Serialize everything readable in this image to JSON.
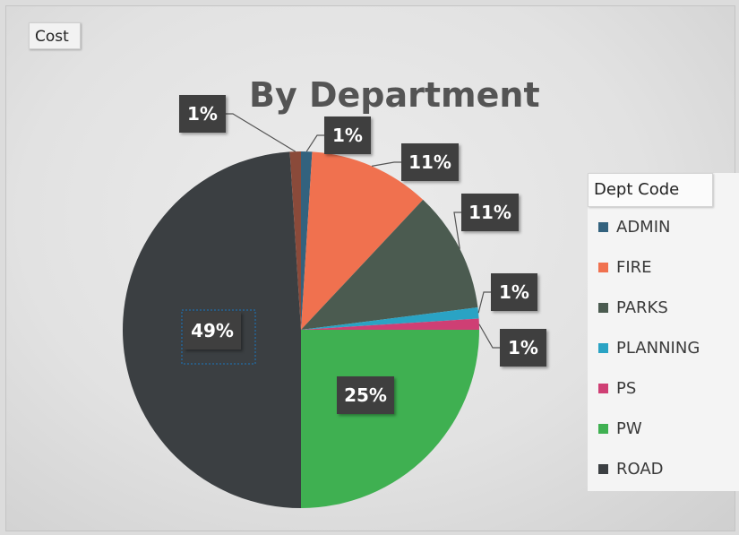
{
  "field_button": {
    "label": "Cost"
  },
  "chart_data": {
    "type": "pie",
    "title": "By Department",
    "legend": {
      "title": "Dept Code",
      "placement": "right"
    },
    "slices": [
      {
        "name": "ADMIN",
        "value": 1,
        "label": "1%",
        "color": "#33627e"
      },
      {
        "name": "FIRE",
        "value": 11,
        "label": "11%",
        "color": "#f0714f"
      },
      {
        "name": "PARKS",
        "value": 11,
        "label": "11%",
        "color": "#4b5b50"
      },
      {
        "name": "PLANNING",
        "value": 1,
        "label": "1%",
        "color": "#2aa3c4"
      },
      {
        "name": "PS",
        "value": 1,
        "label": "1%",
        "color": "#cf3f74"
      },
      {
        "name": "PW",
        "value": 25,
        "label": "25%",
        "color": "#3fb051"
      },
      {
        "name": "ROAD",
        "value": 49,
        "label": "49%",
        "color": "#3b3f42"
      },
      {
        "name": "",
        "value": 1,
        "label": "1%",
        "color": "#8a4a3a"
      }
    ]
  }
}
